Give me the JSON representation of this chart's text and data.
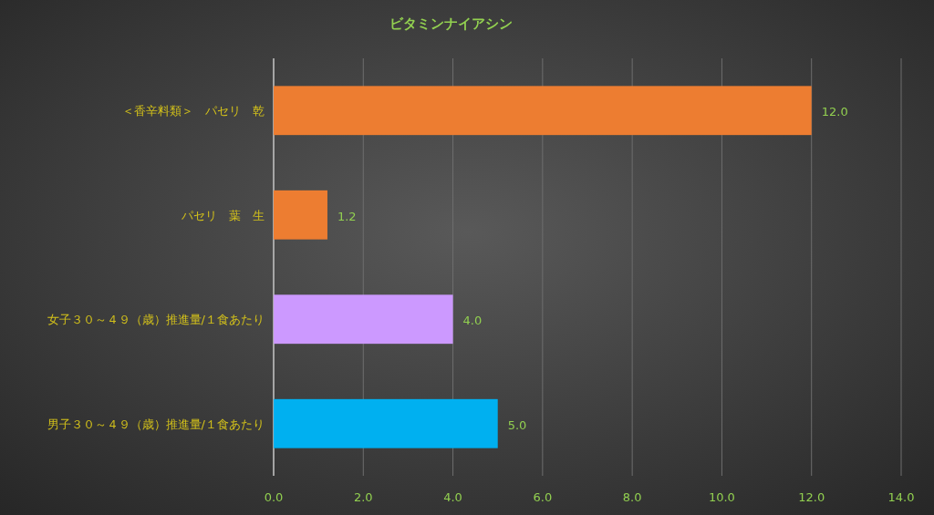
{
  "chart_data": {
    "type": "bar",
    "orientation": "horizontal",
    "title": "ビタミンナイアシン",
    "categories": [
      "＜香辛料類＞　パセリ　乾",
      "パセリ　葉　生",
      "女子３０～４９（歳）推進量/１食あたり",
      "男子３０～４９（歳）推進量/１食あたり"
    ],
    "values": [
      12.0,
      1.2,
      4.0,
      5.0
    ],
    "colors": [
      "#ed7d31",
      "#ed7d31",
      "#cc99ff",
      "#00b0f0"
    ],
    "value_labels": [
      "12.0",
      "1.2",
      "4.0",
      "5.0"
    ],
    "xlim": [
      0,
      14
    ],
    "xticks": [
      {
        "value": 0,
        "label": "0.0"
      },
      {
        "value": 2,
        "label": "2.0"
      },
      {
        "value": 4,
        "label": "4.0"
      },
      {
        "value": 6,
        "label": "6.0"
      },
      {
        "value": 8,
        "label": "8.0"
      },
      {
        "value": 10,
        "label": "10.0"
      },
      {
        "value": 12,
        "label": "12.0"
      },
      {
        "value": 14,
        "label": "14.0"
      }
    ],
    "grid": "x"
  }
}
